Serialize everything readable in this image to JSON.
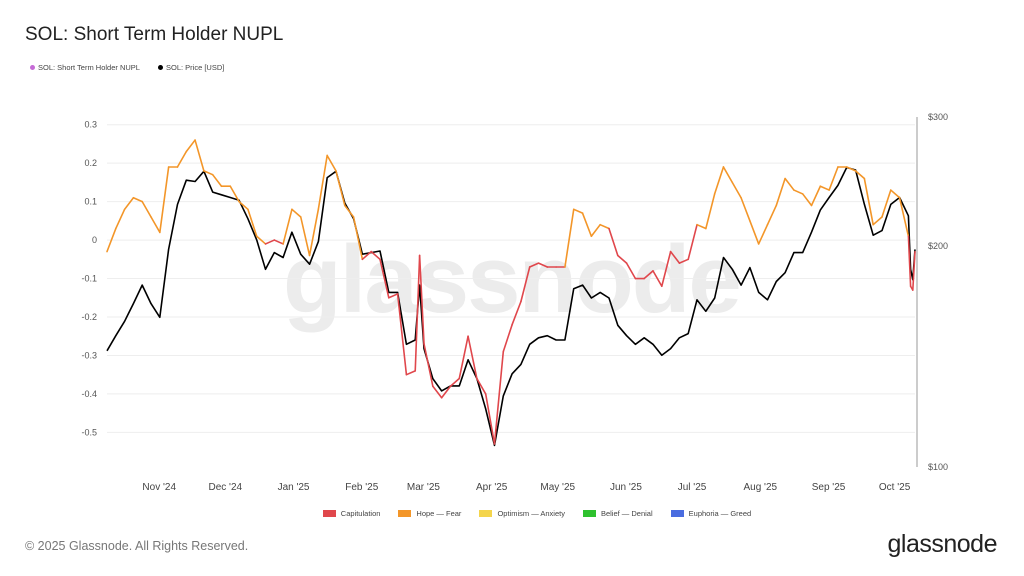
{
  "title": "SOL: Short Term Holder NUPL",
  "watermark": "glassnode",
  "footer": {
    "copyright": "© 2025 Glassnode. All Rights Reserved.",
    "logo": "glassnode"
  },
  "top_legend": [
    {
      "label": "SOL: Short Term Holder NUPL",
      "color": "#c56bd6"
    },
    {
      "label": "SOL: Price [USD]",
      "color": "#000000"
    }
  ],
  "zone_legend": [
    {
      "label": "Capitulation",
      "color": "#e0474c",
      "min": -10,
      "max": 0
    },
    {
      "label": "Hope — Fear",
      "color": "#f39629",
      "min": 0,
      "max": 0.25
    },
    {
      "label": "Optimism — Anxiety",
      "color": "#f4d54c",
      "min": 0.25,
      "max": 0.5
    },
    {
      "label": "Belief — Denial",
      "color": "#2ec12e",
      "min": 0.5,
      "max": 0.75
    },
    {
      "label": "Euphoria — Greed",
      "color": "#4a6ce0",
      "min": 0.75,
      "max": 10
    }
  ],
  "chart_data": {
    "type": "line",
    "title": "SOL: Short Term Holder NUPL",
    "grid": true,
    "legend_position": "top-left",
    "x_range": [
      "2024-10-11",
      "2025-10-13"
    ],
    "x_ticks": [
      {
        "label": "Nov '24",
        "date": "2024-11-01"
      },
      {
        "label": "Dec '24",
        "date": "2024-12-01"
      },
      {
        "label": "Jan '25",
        "date": "2025-01-01"
      },
      {
        "label": "Feb '25",
        "date": "2025-02-01"
      },
      {
        "label": "Mar '25",
        "date": "2025-03-01"
      },
      {
        "label": "Apr '25",
        "date": "2025-04-01"
      },
      {
        "label": "May '25",
        "date": "2025-05-01"
      },
      {
        "label": "Jun '25",
        "date": "2025-06-01"
      },
      {
        "label": "Jul '25",
        "date": "2025-07-01"
      },
      {
        "label": "Aug '25",
        "date": "2025-08-01"
      },
      {
        "label": "Sep '25",
        "date": "2025-09-01"
      },
      {
        "label": "Oct '25",
        "date": "2025-10-01"
      }
    ],
    "y_left": {
      "range": [
        -0.59,
        0.32
      ],
      "ticks": [
        0.3,
        0.2,
        0.1,
        0,
        -0.1,
        -0.2,
        -0.3,
        -0.4,
        -0.5
      ],
      "tick_labels": [
        "0.3",
        "0.2",
        "0.1",
        "0",
        "-0.1",
        "-0.2",
        "-0.3",
        "-0.4",
        "-0.5"
      ]
    },
    "y_right": {
      "scale": "log",
      "range": [
        100,
        300
      ],
      "ticks": [
        300,
        200,
        100
      ],
      "tick_labels": [
        "$300",
        "$200",
        "$100"
      ]
    },
    "dates": [
      "2024-10-11",
      "2024-10-15",
      "2024-10-19",
      "2024-10-23",
      "2024-10-27",
      "2024-10-31",
      "2024-11-04",
      "2024-11-08",
      "2024-11-12",
      "2024-11-16",
      "2024-11-20",
      "2024-11-24",
      "2024-11-28",
      "2024-12-02",
      "2024-12-06",
      "2024-12-10",
      "2024-12-14",
      "2024-12-18",
      "2024-12-22",
      "2024-12-26",
      "2024-12-30",
      "2025-01-03",
      "2025-01-07",
      "2025-01-11",
      "2025-01-15",
      "2025-01-19",
      "2025-01-23",
      "2025-01-27",
      "2025-01-31",
      "2025-02-04",
      "2025-02-08",
      "2025-02-12",
      "2025-02-16",
      "2025-02-20",
      "2025-02-24",
      "2025-02-28",
      "2025-03-02",
      "2025-03-04",
      "2025-03-08",
      "2025-03-12",
      "2025-03-16",
      "2025-03-20",
      "2025-03-24",
      "2025-03-28",
      "2025-04-01",
      "2025-04-05",
      "2025-04-09",
      "2025-04-13",
      "2025-04-17",
      "2025-04-21",
      "2025-04-25",
      "2025-04-29",
      "2025-05-03",
      "2025-05-07",
      "2025-05-11",
      "2025-05-15",
      "2025-05-19",
      "2025-05-23",
      "2025-05-27",
      "2025-05-31",
      "2025-06-04",
      "2025-06-08",
      "2025-06-12",
      "2025-06-16",
      "2025-06-20",
      "2025-06-24",
      "2025-06-28",
      "2025-07-02",
      "2025-07-06",
      "2025-07-10",
      "2025-07-14",
      "2025-07-18",
      "2025-07-22",
      "2025-07-26",
      "2025-07-30",
      "2025-08-03",
      "2025-08-07",
      "2025-08-11",
      "2025-08-15",
      "2025-08-19",
      "2025-08-23",
      "2025-08-27",
      "2025-08-31",
      "2025-09-04",
      "2025-09-08",
      "2025-09-12",
      "2025-09-16",
      "2025-09-20",
      "2025-09-24",
      "2025-09-28",
      "2025-10-02",
      "2025-10-06",
      "2025-10-10",
      "2025-10-11",
      "2025-10-12",
      "2025-10-13"
    ],
    "series": [
      {
        "name": "SOL: Short Term Holder NUPL",
        "axis": "left",
        "values": [
          -0.03,
          0.03,
          0.08,
          0.11,
          0.1,
          0.06,
          0.02,
          0.19,
          0.19,
          0.23,
          0.26,
          0.18,
          0.17,
          0.14,
          0.14,
          0.1,
          0.08,
          0.01,
          -0.01,
          0.0,
          -0.01,
          0.08,
          0.06,
          -0.04,
          0.08,
          0.22,
          0.18,
          0.09,
          0.06,
          -0.05,
          -0.03,
          -0.05,
          -0.15,
          -0.14,
          -0.35,
          -0.34,
          -0.04,
          -0.27,
          -0.38,
          -0.41,
          -0.38,
          -0.36,
          -0.25,
          -0.36,
          -0.4,
          -0.53,
          -0.29,
          -0.22,
          -0.16,
          -0.07,
          -0.06,
          -0.07,
          -0.07,
          -0.07,
          0.08,
          0.07,
          0.01,
          0.04,
          0.03,
          -0.04,
          -0.06,
          -0.1,
          -0.1,
          -0.08,
          -0.12,
          -0.03,
          -0.06,
          -0.05,
          0.04,
          0.03,
          0.12,
          0.19,
          0.15,
          0.11,
          0.05,
          -0.01,
          0.04,
          0.09,
          0.16,
          0.13,
          0.12,
          0.09,
          0.14,
          0.13,
          0.19,
          0.19,
          0.18,
          0.16,
          0.04,
          0.06,
          0.13,
          0.11,
          0.01,
          -0.12,
          -0.13,
          -0.03
        ]
      },
      {
        "name": "SOL: Price [USD]",
        "axis": "right",
        "color": "#000000",
        "values": [
          144,
          151,
          158,
          167,
          177,
          167,
          160,
          198,
          228,
          246,
          245,
          253,
          237,
          235,
          233,
          231,
          218,
          204,
          186,
          196,
          193,
          209,
          195,
          189,
          203,
          248,
          253,
          229,
          218,
          195,
          196,
          197,
          173,
          173,
          147,
          149,
          177,
          145,
          132,
          127,
          129,
          129,
          140,
          132,
          120,
          107,
          125,
          134,
          138,
          147,
          150,
          151,
          149,
          149,
          175,
          177,
          170,
          173,
          170,
          156,
          151,
          147,
          150,
          147,
          142,
          145,
          150,
          152,
          169,
          163,
          170,
          193,
          186,
          177,
          187,
          173,
          169,
          179,
          184,
          196,
          196,
          209,
          224,
          233,
          242,
          256,
          254,
          228,
          207,
          210,
          228,
          233,
          220,
          186,
          180,
          198
        ]
      }
    ]
  }
}
